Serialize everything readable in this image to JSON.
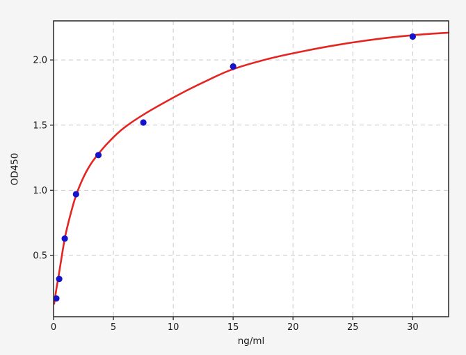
{
  "figure": {
    "background_color": "#f5f5f5",
    "plot_background_color": "#ffffff",
    "spine_color": "#333333",
    "grid_color": "#c9c9c9",
    "tick_label_color": "#1a1a1a"
  },
  "chart_data": {
    "type": "scatter",
    "title": "",
    "xlabel": "ng/ml",
    "ylabel": "OD450",
    "xlim": [
      0,
      33
    ],
    "ylim": [
      0.03,
      2.3
    ],
    "xticks": [
      0,
      5,
      10,
      15,
      20,
      25,
      30
    ],
    "xtick_labels": [
      "0",
      "5",
      "10",
      "15",
      "20",
      "25",
      "30"
    ],
    "yticks": [
      0.5,
      1.0,
      1.5,
      2.0
    ],
    "ytick_labels": [
      "0.5",
      "1.0",
      "1.5",
      "2.0"
    ],
    "grid": "dashed",
    "legend": "none",
    "series": [
      {
        "name": "standard-points",
        "type": "scatter",
        "marker": "circle",
        "color": "#1414cc",
        "points": [
          [
            0.234,
            0.17
          ],
          [
            0.469,
            0.32
          ],
          [
            0.938,
            0.63
          ],
          [
            1.875,
            0.97
          ],
          [
            3.75,
            1.27
          ],
          [
            7.5,
            1.52
          ],
          [
            15,
            1.95
          ],
          [
            30,
            2.18
          ]
        ]
      },
      {
        "name": "fit-curve",
        "type": "line",
        "color": "#e42522",
        "x": [
          0.05,
          0.234,
          0.469,
          0.938,
          1.4,
          1.875,
          2.5,
          3.1,
          3.75,
          4.5,
          5.5,
          6.5,
          7.5,
          9,
          11,
          13,
          15,
          18,
          21,
          24,
          27,
          30,
          33
        ],
        "y": [
          0.13,
          0.24,
          0.37,
          0.63,
          0.81,
          0.96,
          1.1,
          1.2,
          1.28,
          1.36,
          1.45,
          1.52,
          1.58,
          1.66,
          1.76,
          1.85,
          1.93,
          2.01,
          2.07,
          2.12,
          2.16,
          2.19,
          2.21
        ]
      }
    ]
  }
}
